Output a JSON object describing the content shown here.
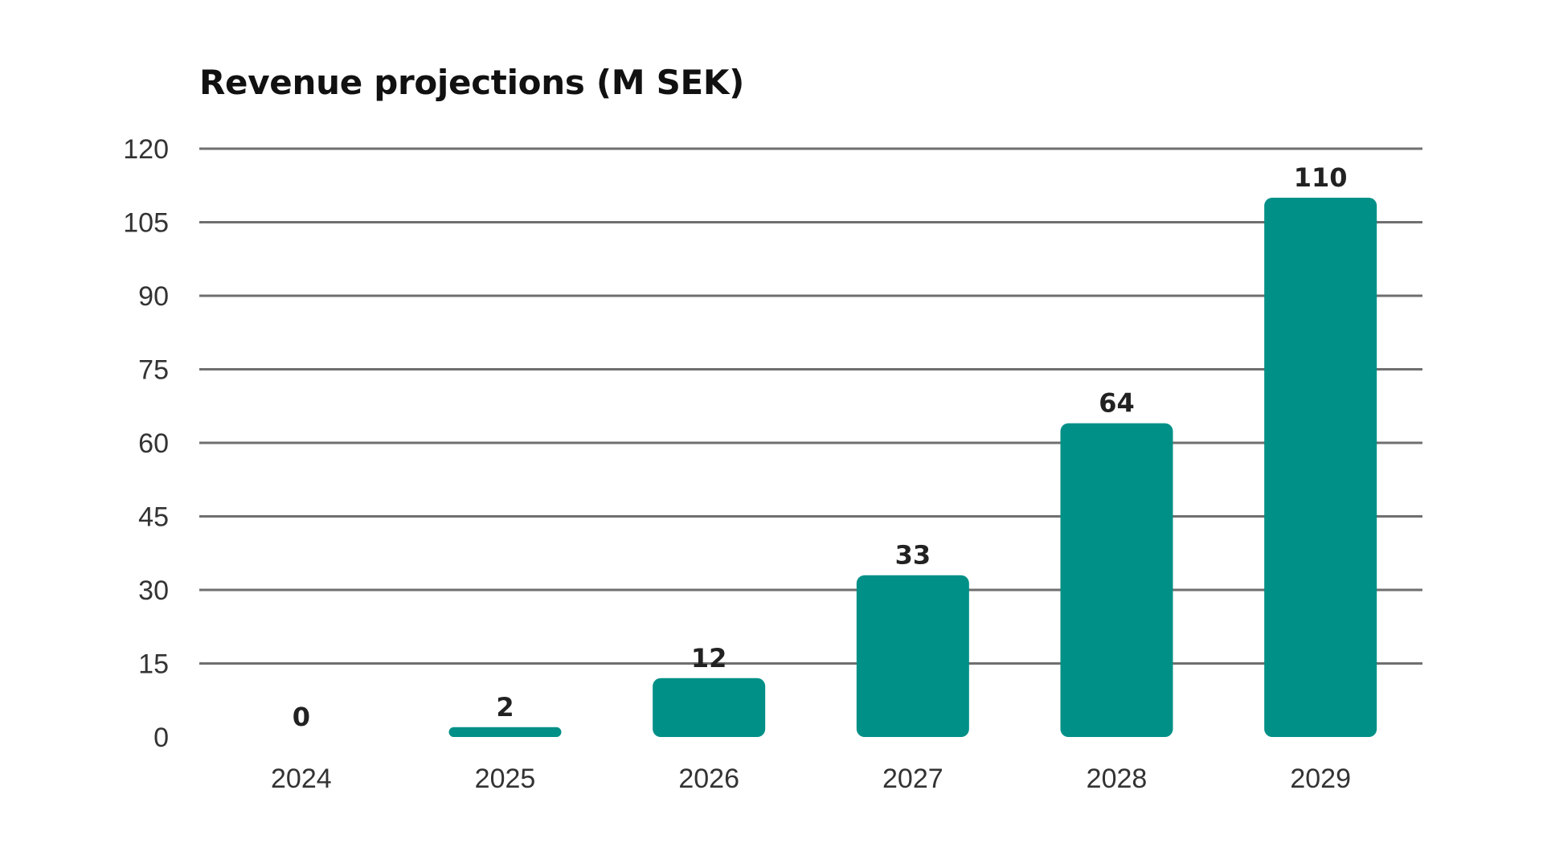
{
  "chart_data": {
    "type": "bar",
    "title": "Revenue projections (M SEK)",
    "categories": [
      "2024",
      "2025",
      "2026",
      "2027",
      "2028",
      "2029"
    ],
    "values": [
      0,
      2,
      12,
      33,
      64,
      110
    ],
    "data_labels": [
      "0",
      "2",
      "12",
      "33",
      "64",
      "110"
    ],
    "yticks": [
      "0",
      "15",
      "30",
      "45",
      "60",
      "75",
      "90",
      "105",
      "120"
    ],
    "ylim": [
      0,
      120
    ],
    "grid": true,
    "bar_color": "#009087",
    "xlabel": "",
    "ylabel": ""
  }
}
